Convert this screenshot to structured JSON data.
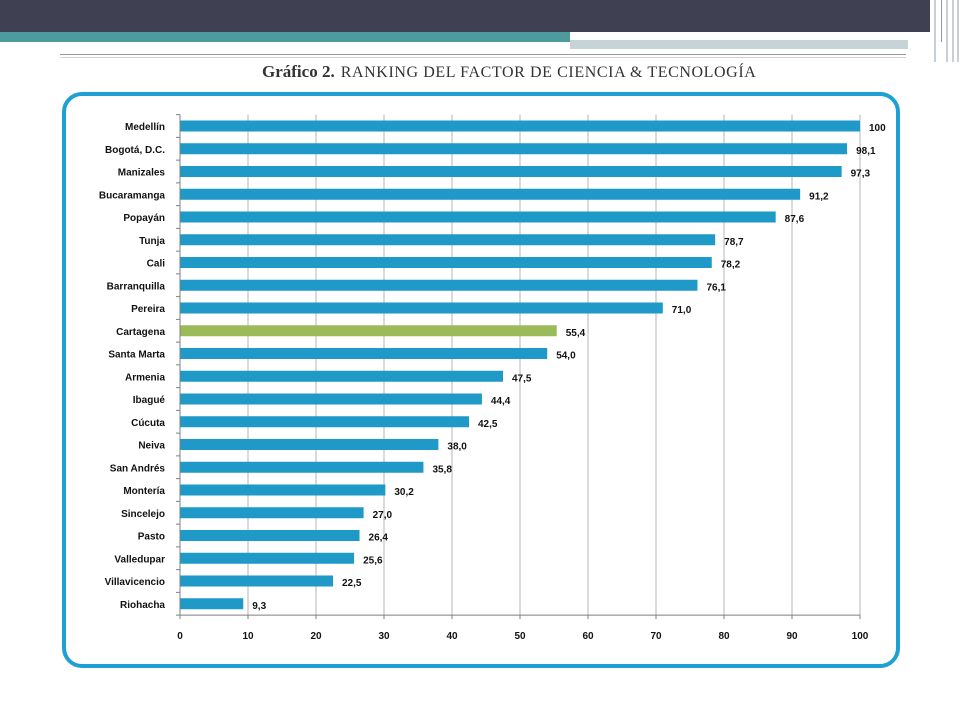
{
  "colors": {
    "header_bar": "#3f4052",
    "header_accent": "#4e9b9d",
    "header_accent_light": "#c7d4d7",
    "frame_border": "#1ea0d2",
    "bar": "#1f99c8",
    "highlight_bar": "#9bbb59",
    "grid": "#b5b5b5",
    "axis": "#7f7f7f"
  },
  "chart_data": {
    "type": "bar",
    "orientation": "horizontal",
    "title_prefix": "Gráfico 2.",
    "title": "RANKING DEL FACTOR DE CIENCIA & TECNOLOGÍA",
    "categories": [
      "Medellín",
      "Bogotá, D.C.",
      "Manizales",
      "Bucaramanga",
      "Popayán",
      "Tunja",
      "Cali",
      "Barranquilla",
      "Pereira",
      "Cartagena",
      "Santa Marta",
      "Armenia",
      "Ibagué",
      "Cúcuta",
      "Neiva",
      "San Andrés",
      "Montería",
      "Sincelejo",
      "Pasto",
      "Valledupar",
      "Villavicencio",
      "Riohacha"
    ],
    "values": [
      100,
      98.1,
      97.3,
      91.2,
      87.6,
      78.7,
      78.2,
      76.1,
      71.0,
      55.4,
      54.0,
      47.5,
      44.4,
      42.5,
      38.0,
      35.8,
      30.2,
      27.0,
      26.4,
      25.6,
      22.5,
      9.3
    ],
    "value_labels": [
      "100",
      "98,1",
      "97,3",
      "91,2",
      "87,6",
      "78,7",
      "78,2",
      "76,1",
      "71,0",
      "55,4",
      "54,0",
      "47,5",
      "44,4",
      "42,5",
      "38,0",
      "35,8",
      "30,2",
      "27,0",
      "26,4",
      "25,6",
      "22,5",
      "9,3"
    ],
    "highlight_index": 9,
    "xlim": [
      0,
      100
    ],
    "xticks": [
      0,
      10,
      20,
      30,
      40,
      50,
      60,
      70,
      80,
      90,
      100
    ],
    "grid": true,
    "legend": "none"
  }
}
